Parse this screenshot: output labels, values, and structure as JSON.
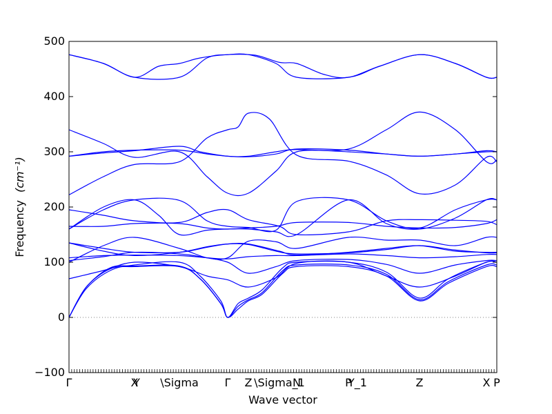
{
  "chart_data": {
    "type": "line",
    "xlabel": "Wave vector",
    "ylabel": "Frequency",
    "ylabel_unit": "(cm⁻¹)",
    "ylim": [
      -100,
      500
    ],
    "yticks": [
      -100,
      0,
      100,
      200,
      300,
      400,
      500
    ],
    "grid": false,
    "legend": "none",
    "line_color": "#0000ff",
    "zero_line_color": "#808080",
    "x_range": [
      0,
      6.2
    ],
    "high_symmetry_points": [
      {
        "label": "Γ",
        "x": 0.0
      },
      {
        "label": "X",
        "x": 0.95
      },
      {
        "label": "Y",
        "x": 0.98
      },
      {
        "label": "\\Sigma",
        "x": 1.6
      },
      {
        "label": "Γ",
        "x": 2.3
      },
      {
        "label": "Z",
        "x": 2.6
      },
      {
        "label": "\\Sigma_1",
        "x": 3.05
      },
      {
        "label": "N",
        "x": 3.3
      },
      {
        "label": "P",
        "x": 4.05
      },
      {
        "label": "Y_1",
        "x": 4.18
      },
      {
        "label": "Z",
        "x": 5.08
      },
      {
        "label": "X",
        "x": 6.05
      },
      {
        "label": "P",
        "x": 6.2
      }
    ],
    "series": [
      {
        "values": [
          [
            0.0,
            476
          ],
          [
            0.5,
            460
          ],
          [
            0.95,
            435
          ],
          [
            1.6,
            435
          ],
          [
            2.0,
            470
          ],
          [
            2.3,
            476
          ],
          [
            2.6,
            476
          ],
          [
            3.0,
            460
          ],
          [
            3.3,
            435
          ],
          [
            4.05,
            435
          ],
          [
            4.5,
            455
          ],
          [
            5.08,
            476
          ],
          [
            5.6,
            460
          ],
          [
            6.05,
            435
          ],
          [
            6.2,
            435
          ]
        ]
      },
      {
        "values": [
          [
            0.0,
            476
          ],
          [
            0.5,
            460
          ],
          [
            0.95,
            435
          ],
          [
            1.3,
            455
          ],
          [
            1.6,
            460
          ],
          [
            1.9,
            470
          ],
          [
            2.3,
            476
          ],
          [
            2.7,
            475
          ],
          [
            3.05,
            462
          ],
          [
            3.3,
            460
          ],
          [
            3.7,
            440
          ],
          [
            4.05,
            435
          ],
          [
            4.5,
            455
          ],
          [
            5.08,
            476
          ],
          [
            5.6,
            460
          ],
          [
            6.05,
            435
          ],
          [
            6.2,
            435
          ]
        ]
      },
      {
        "values": [
          [
            0.0,
            340
          ],
          [
            0.5,
            315
          ],
          [
            0.95,
            290
          ],
          [
            1.6,
            300
          ],
          [
            2.0,
            255
          ],
          [
            2.3,
            225
          ],
          [
            2.6,
            225
          ],
          [
            3.0,
            265
          ],
          [
            3.3,
            300
          ],
          [
            4.05,
            305
          ],
          [
            4.6,
            340
          ],
          [
            5.08,
            372
          ],
          [
            5.6,
            340
          ],
          [
            6.05,
            282
          ],
          [
            6.2,
            285
          ]
        ]
      },
      {
        "values": [
          [
            0.0,
            292
          ],
          [
            0.5,
            300
          ],
          [
            0.95,
            303
          ],
          [
            1.6,
            303
          ],
          [
            2.0,
            296
          ],
          [
            2.3,
            292
          ],
          [
            2.6,
            291
          ],
          [
            3.0,
            296
          ],
          [
            3.3,
            305
          ],
          [
            4.05,
            303
          ],
          [
            4.6,
            296
          ],
          [
            5.08,
            292
          ],
          [
            5.6,
            296
          ],
          [
            6.05,
            302
          ],
          [
            6.2,
            300
          ]
        ]
      },
      {
        "values": [
          [
            0.0,
            292
          ],
          [
            0.5,
            298
          ],
          [
            0.95,
            302
          ],
          [
            1.6,
            310
          ],
          [
            1.9,
            300
          ],
          [
            2.3,
            292
          ],
          [
            2.6,
            292
          ],
          [
            3.0,
            300
          ],
          [
            3.3,
            304
          ],
          [
            4.05,
            300
          ],
          [
            4.6,
            296
          ],
          [
            5.08,
            292
          ],
          [
            5.6,
            296
          ],
          [
            6.05,
            300
          ],
          [
            6.2,
            300
          ]
        ]
      },
      {
        "values": [
          [
            0.0,
            222
          ],
          [
            0.5,
            255
          ],
          [
            0.95,
            277
          ],
          [
            1.6,
            282
          ],
          [
            2.0,
            325
          ],
          [
            2.3,
            340
          ],
          [
            2.45,
            345
          ],
          [
            2.6,
            370
          ],
          [
            2.9,
            360
          ],
          [
            3.3,
            294
          ],
          [
            4.05,
            283
          ],
          [
            4.6,
            258
          ],
          [
            5.08,
            224
          ],
          [
            5.6,
            240
          ],
          [
            6.05,
            290
          ],
          [
            6.2,
            282
          ]
        ]
      },
      {
        "values": [
          [
            0.0,
            195
          ],
          [
            0.5,
            185
          ],
          [
            0.95,
            175
          ],
          [
            1.6,
            172
          ],
          [
            2.0,
            190
          ],
          [
            2.3,
            195
          ],
          [
            2.6,
            177
          ],
          [
            3.05,
            165
          ],
          [
            3.3,
            150
          ],
          [
            4.05,
            155
          ],
          [
            4.6,
            175
          ],
          [
            5.08,
            177
          ],
          [
            5.6,
            176
          ],
          [
            6.05,
            174
          ],
          [
            6.2,
            168
          ]
        ]
      },
      {
        "values": [
          [
            0.0,
            165
          ],
          [
            0.5,
            165
          ],
          [
            0.95,
            170
          ],
          [
            1.6,
            170
          ],
          [
            2.0,
            162
          ],
          [
            2.3,
            160
          ],
          [
            2.6,
            162
          ],
          [
            3.0,
            165
          ],
          [
            3.3,
            172
          ],
          [
            4.05,
            172
          ],
          [
            4.6,
            165
          ],
          [
            5.08,
            162
          ],
          [
            5.6,
            163
          ],
          [
            6.05,
            170
          ],
          [
            6.2,
            177
          ]
        ]
      },
      {
        "values": [
          [
            0.0,
            160
          ],
          [
            0.5,
            195
          ],
          [
            0.95,
            213
          ],
          [
            1.6,
            212
          ],
          [
            2.0,
            175
          ],
          [
            2.3,
            165
          ],
          [
            2.6,
            163
          ],
          [
            3.0,
            158
          ],
          [
            3.3,
            210
          ],
          [
            4.05,
            213
          ],
          [
            4.6,
            175
          ],
          [
            5.08,
            162
          ],
          [
            5.6,
            195
          ],
          [
            6.05,
            213
          ],
          [
            6.2,
            213
          ]
        ]
      },
      {
        "values": [
          [
            0.0,
            160
          ],
          [
            0.5,
            200
          ],
          [
            0.95,
            213
          ],
          [
            1.3,
            185
          ],
          [
            1.6,
            150
          ],
          [
            2.0,
            158
          ],
          [
            2.3,
            160
          ],
          [
            2.6,
            160
          ],
          [
            3.0,
            155
          ],
          [
            3.3,
            150
          ],
          [
            4.05,
            213
          ],
          [
            4.6,
            170
          ],
          [
            5.08,
            160
          ],
          [
            5.6,
            180
          ],
          [
            6.05,
            213
          ],
          [
            6.2,
            213
          ]
        ]
      },
      {
        "values": [
          [
            0.0,
            135
          ],
          [
            0.5,
            125
          ],
          [
            0.95,
            118
          ],
          [
            1.6,
            118
          ],
          [
            2.0,
            127
          ],
          [
            2.3,
            133
          ],
          [
            2.6,
            133
          ],
          [
            3.05,
            120
          ],
          [
            3.3,
            113
          ],
          [
            4.05,
            118
          ],
          [
            4.6,
            125
          ],
          [
            5.08,
            130
          ],
          [
            5.6,
            120
          ],
          [
            6.05,
            118
          ],
          [
            6.2,
            118
          ]
        ]
      },
      {
        "values": [
          [
            0.0,
            135
          ],
          [
            0.5,
            120
          ],
          [
            0.95,
            112
          ],
          [
            1.6,
            118
          ],
          [
            2.0,
            128
          ],
          [
            2.3,
            133
          ],
          [
            2.6,
            132
          ],
          [
            3.0,
            120
          ],
          [
            3.3,
            115
          ],
          [
            4.05,
            117
          ],
          [
            4.6,
            123
          ],
          [
            5.08,
            130
          ],
          [
            5.6,
            122
          ],
          [
            6.05,
            117
          ],
          [
            6.2,
            117
          ]
        ]
      },
      {
        "values": [
          [
            0.0,
            100
          ],
          [
            0.5,
            130
          ],
          [
            0.95,
            145
          ],
          [
            1.6,
            125
          ],
          [
            2.0,
            108
          ],
          [
            2.3,
            108
          ],
          [
            2.6,
            138
          ],
          [
            3.0,
            137
          ],
          [
            3.3,
            125
          ],
          [
            4.05,
            145
          ],
          [
            4.6,
            140
          ],
          [
            5.08,
            140
          ],
          [
            5.6,
            130
          ],
          [
            6.05,
            145
          ],
          [
            6.2,
            145
          ]
        ]
      },
      {
        "values": [
          [
            0.0,
            108
          ],
          [
            0.5,
            112
          ],
          [
            0.95,
            113
          ],
          [
            1.6,
            112
          ],
          [
            2.0,
            108
          ],
          [
            2.3,
            106
          ],
          [
            2.6,
            110
          ],
          [
            3.0,
            112
          ],
          [
            3.3,
            112
          ],
          [
            4.05,
            115
          ],
          [
            4.6,
            112
          ],
          [
            5.08,
            108
          ],
          [
            5.6,
            110
          ],
          [
            6.05,
            114
          ],
          [
            6.2,
            114
          ]
        ]
      },
      {
        "values": [
          [
            0.0,
            103
          ],
          [
            0.5,
            110
          ],
          [
            0.95,
            118
          ],
          [
            1.6,
            115
          ],
          [
            2.0,
            108
          ],
          [
            2.3,
            100
          ],
          [
            2.6,
            80
          ],
          [
            3.0,
            92
          ],
          [
            3.3,
            103
          ],
          [
            4.05,
            105
          ],
          [
            4.6,
            96
          ],
          [
            5.08,
            80
          ],
          [
            5.6,
            95
          ],
          [
            6.05,
            103
          ],
          [
            6.2,
            103
          ]
        ]
      },
      {
        "values": [
          [
            0.0,
            70
          ],
          [
            0.5,
            85
          ],
          [
            0.95,
            100
          ],
          [
            1.6,
            92
          ],
          [
            2.0,
            75
          ],
          [
            2.3,
            68
          ],
          [
            2.6,
            55
          ],
          [
            3.0,
            72
          ],
          [
            3.3,
            98
          ],
          [
            4.05,
            100
          ],
          [
            4.6,
            75
          ],
          [
            5.08,
            55
          ],
          [
            5.6,
            75
          ],
          [
            6.05,
            100
          ],
          [
            6.2,
            100
          ]
        ]
      },
      {
        "values": [
          [
            0.0,
            0
          ],
          [
            0.25,
            55
          ],
          [
            0.6,
            88
          ],
          [
            0.95,
            92
          ],
          [
            1.6,
            92
          ],
          [
            1.9,
            70
          ],
          [
            2.2,
            25
          ],
          [
            2.3,
            0
          ],
          [
            2.45,
            15
          ],
          [
            2.6,
            30
          ],
          [
            2.8,
            42
          ],
          [
            3.1,
            80
          ],
          [
            3.3,
            92
          ],
          [
            4.05,
            92
          ],
          [
            4.6,
            75
          ],
          [
            5.08,
            30
          ],
          [
            5.5,
            62
          ],
          [
            6.05,
            92
          ],
          [
            6.2,
            92
          ]
        ]
      },
      {
        "values": [
          [
            0.0,
            0
          ],
          [
            0.25,
            55
          ],
          [
            0.6,
            90
          ],
          [
            0.95,
            93
          ],
          [
            1.6,
            93
          ],
          [
            1.9,
            70
          ],
          [
            2.2,
            25
          ],
          [
            2.3,
            0
          ],
          [
            2.45,
            20
          ],
          [
            2.6,
            32
          ],
          [
            2.8,
            45
          ],
          [
            3.1,
            85
          ],
          [
            3.3,
            95
          ],
          [
            4.05,
            95
          ],
          [
            4.6,
            78
          ],
          [
            5.08,
            32
          ],
          [
            5.5,
            65
          ],
          [
            6.05,
            95
          ],
          [
            6.2,
            95
          ]
        ]
      },
      {
        "values": [
          [
            0.0,
            0
          ],
          [
            0.25,
            52
          ],
          [
            0.6,
            85
          ],
          [
            0.95,
            95
          ],
          [
            1.6,
            100
          ],
          [
            1.9,
            75
          ],
          [
            2.2,
            30
          ],
          [
            2.3,
            0
          ],
          [
            2.45,
            25
          ],
          [
            2.6,
            35
          ],
          [
            2.8,
            50
          ],
          [
            3.1,
            90
          ],
          [
            3.3,
            100
          ],
          [
            4.05,
            100
          ],
          [
            4.6,
            82
          ],
          [
            5.08,
            35
          ],
          [
            5.5,
            70
          ],
          [
            6.05,
            100
          ],
          [
            6.2,
            100
          ]
        ]
      }
    ]
  }
}
